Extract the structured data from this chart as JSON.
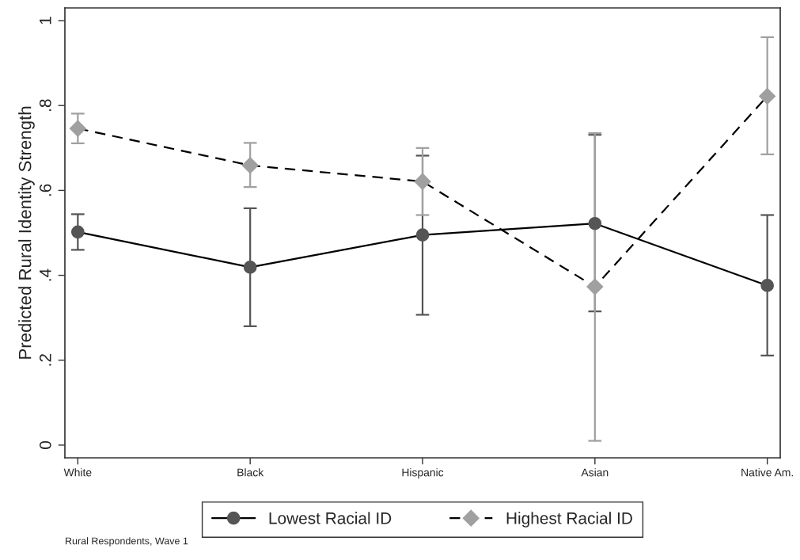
{
  "chart_data": {
    "type": "line",
    "ylabel": "Predicted Rural Identity Strength",
    "categories": [
      "White",
      "Black",
      "Hispanic",
      "Asian",
      "Native Am."
    ],
    "series": [
      {
        "name": "Lowest Racial ID",
        "color": "#555555",
        "marker": "circle",
        "line_style": "solid",
        "values": [
          0.502,
          0.419,
          0.495,
          0.522,
          0.376
        ],
        "errors": [
          [
            0.46,
            0.544
          ],
          [
            0.28,
            0.558
          ],
          [
            0.307,
            0.682
          ],
          [
            0.315,
            0.731
          ],
          [
            0.211,
            0.542
          ]
        ]
      },
      {
        "name": "Highest Racial ID",
        "color": "#a0a0a0",
        "marker": "diamond",
        "line_style": "dashed",
        "values": [
          0.746,
          0.659,
          0.621,
          0.373,
          0.822
        ],
        "errors": [
          [
            0.711,
            0.781
          ],
          [
            0.608,
            0.712
          ],
          [
            0.542,
            0.7
          ],
          [
            0.01,
            0.735
          ],
          [
            0.685,
            0.961
          ]
        ]
      }
    ],
    "ylim": [
      -0.03,
      1.03
    ],
    "yticks": [
      0,
      {
        "value": 0.2,
        "label": ".2"
      },
      {
        "value": 0.4,
        "label": ".4"
      },
      {
        "value": 0.6,
        "label": ".6"
      },
      {
        "value": 0.8,
        "label": ".8"
      },
      1
    ],
    "grid": false,
    "legend": "bottom",
    "annotations": [
      "Rural Respondents, Wave 1"
    ]
  }
}
